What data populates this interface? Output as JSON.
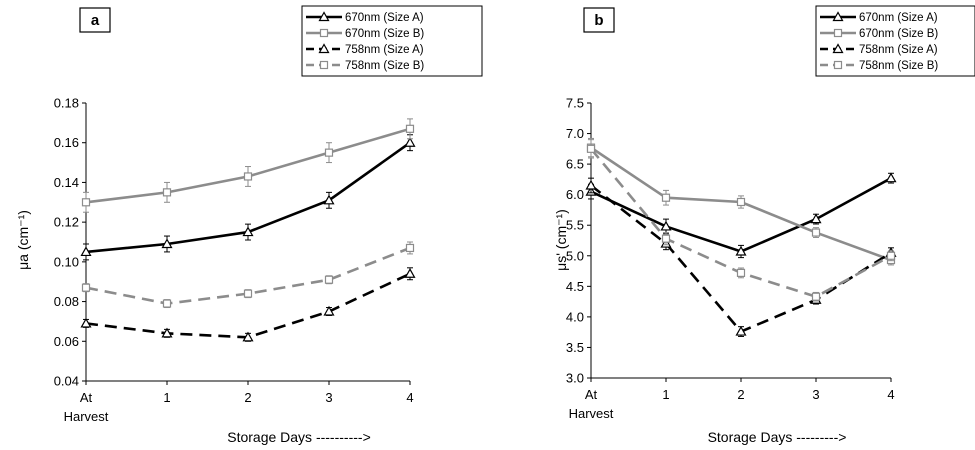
{
  "chart_data": [
    {
      "type": "line",
      "panel_label": "a",
      "categories": [
        "At Harvest",
        "1",
        "2",
        "3",
        "4"
      ],
      "ylabel": "μa (cm⁻¹)",
      "xlabel": "Storage Days ---------->",
      "ylim": [
        0.04,
        0.18
      ],
      "yticks": [
        "0.04",
        "0.06",
        "0.08",
        "0.10",
        "0.12",
        "0.14",
        "0.16",
        "0.18"
      ],
      "legend_position": "top-right",
      "series": [
        {
          "name": "670nm (Size A)",
          "values": [
            0.105,
            0.109,
            0.115,
            0.131,
            0.16
          ],
          "errors": [
            0.004,
            0.004,
            0.004,
            0.004,
            0.004
          ],
          "color": "#000000",
          "dash": "solid",
          "marker": "triangle"
        },
        {
          "name": "670nm (Size B)",
          "values": [
            0.13,
            0.135,
            0.143,
            0.155,
            0.167
          ],
          "errors": [
            0.005,
            0.005,
            0.005,
            0.005,
            0.005
          ],
          "color": "#8c8c8c",
          "dash": "solid",
          "marker": "square"
        },
        {
          "name": "758nm (Size A)",
          "values": [
            0.069,
            0.064,
            0.062,
            0.075,
            0.094
          ],
          "errors": [
            0.002,
            0.002,
            0.002,
            0.002,
            0.003
          ],
          "color": "#000000",
          "dash": "dashed",
          "marker": "triangle"
        },
        {
          "name": "758nm (Size B)",
          "values": [
            0.087,
            0.079,
            0.084,
            0.091,
            0.107
          ],
          "errors": [
            0.002,
            0.002,
            0.002,
            0.002,
            0.003
          ],
          "color": "#8c8c8c",
          "dash": "dashed",
          "marker": "square"
        }
      ]
    },
    {
      "type": "line",
      "panel_label": "b",
      "categories": [
        "At Harvest",
        "1",
        "2",
        "3",
        "4"
      ],
      "ylabel": "μs' (cm⁻¹)",
      "xlabel": "Storage Days --------->",
      "ylim": [
        3.0,
        7.5
      ],
      "yticks": [
        "3.0",
        "3.5",
        "4.0",
        "4.5",
        "5.0",
        "5.5",
        "6.0",
        "6.5",
        "7.0",
        "7.5"
      ],
      "legend_position": "top-right",
      "series": [
        {
          "name": "670nm (Size A)",
          "values": [
            6.05,
            5.48,
            5.07,
            5.6,
            6.27
          ],
          "errors": [
            0.12,
            0.12,
            0.1,
            0.08,
            0.08
          ],
          "color": "#000000",
          "dash": "solid",
          "marker": "triangle"
        },
        {
          "name": "670nm (Size B)",
          "values": [
            6.77,
            5.95,
            5.88,
            5.38,
            4.93
          ],
          "errors": [
            0.15,
            0.12,
            0.1,
            0.08,
            0.08
          ],
          "color": "#8c8c8c",
          "dash": "solid",
          "marker": "square"
        },
        {
          "name": "758nm (Size A)",
          "values": [
            6.15,
            5.2,
            3.76,
            4.28,
            5.05
          ],
          "errors": [
            0.12,
            0.1,
            0.08,
            0.07,
            0.08
          ],
          "color": "#000000",
          "dash": "dashed",
          "marker": "triangle"
        },
        {
          "name": "758nm (Size B)",
          "values": [
            6.75,
            5.28,
            4.72,
            4.33,
            5.0
          ],
          "errors": [
            0.15,
            0.1,
            0.08,
            0.07,
            0.08
          ],
          "color": "#8c8c8c",
          "dash": "dashed",
          "marker": "square"
        }
      ]
    }
  ]
}
